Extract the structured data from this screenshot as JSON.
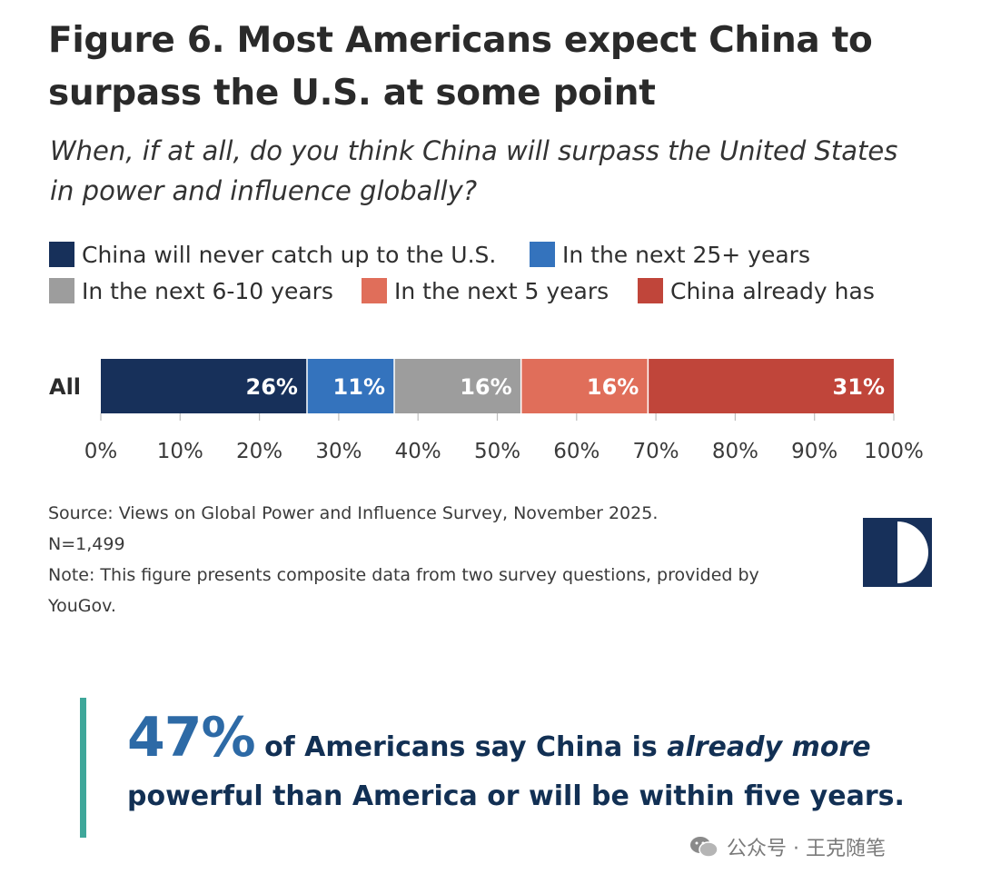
{
  "title_line1": "Figure 6. Most Americans expect China to",
  "title_line2": "surpass the U.S. at some point",
  "subtitle_line1": "When, if at all, do you think China will surpass the United States",
  "subtitle_line2": "in power and influence globally?",
  "colors": {
    "never": "#17305a",
    "next25": "#3473bd",
    "next6_10": "#9d9d9d",
    "next5": "#e06e5a",
    "already": "#c0453a",
    "accent_bar": "#3fa79a",
    "callout_big": "#2d6aa6",
    "callout_text": "#123054"
  },
  "chart_data": {
    "type": "bar",
    "orientation": "horizontal-stacked",
    "categories": [
      "All"
    ],
    "series": [
      {
        "name": "China will never catch up to the U.S.",
        "values": [
          26
        ],
        "label": "26%",
        "color": "#17305a"
      },
      {
        "name": "In the next 25+ years",
        "values": [
          11
        ],
        "label": "11%",
        "color": "#3473bd"
      },
      {
        "name": "In the next 6-10 years",
        "values": [
          16
        ],
        "label": "16%",
        "color": "#9d9d9d"
      },
      {
        "name": "In the next 5 years",
        "values": [
          16
        ],
        "label": "16%",
        "color": "#e06e5a"
      },
      {
        "name": "China already has",
        "values": [
          31
        ],
        "label": "31%",
        "color": "#c0453a"
      }
    ],
    "xlim": [
      0,
      100
    ],
    "x_ticks": [
      "0%",
      "10%",
      "20%",
      "30%",
      "40%",
      "50%",
      "60%",
      "70%",
      "80%",
      "90%",
      "100%"
    ],
    "legend_position": "top-left"
  },
  "source": {
    "line1": "Source: Views on Global Power and Influence Survey, November 2025.",
    "line2": "N=1,499",
    "line3": "Note: This figure presents composite data from two survey questions, provided by",
    "line4": "YouGov."
  },
  "callout": {
    "percent": "47%",
    "text1": " of Americans say China is ",
    "text_em": "already more",
    "text2": "powerful than America or will be within five years."
  },
  "watermark": {
    "text": "公众号 · 王克随笔",
    "icon": "wechat-icon"
  },
  "logo": {
    "icon": "half-circle-logo-icon"
  }
}
